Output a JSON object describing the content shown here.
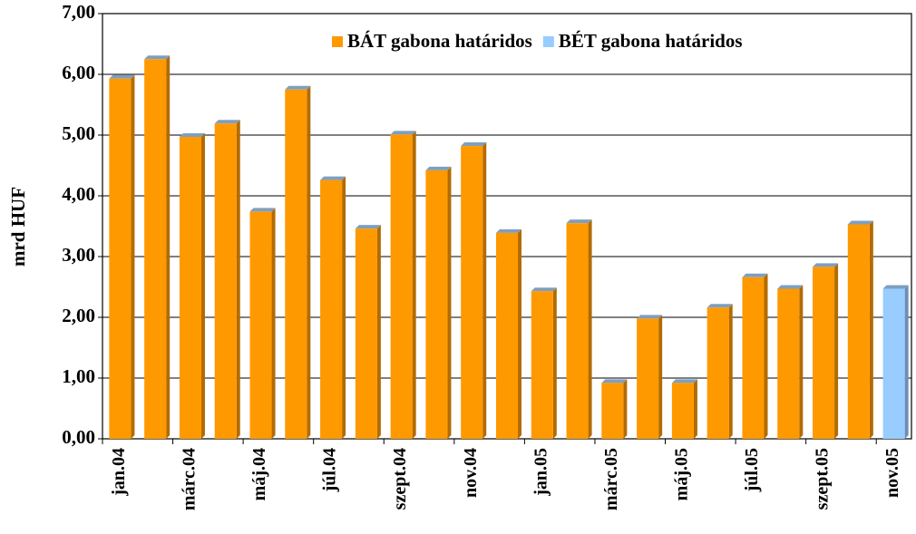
{
  "chart_data": {
    "type": "bar",
    "y_label": "mrd HUF",
    "categories": [
      "jan.04",
      null,
      "márc.04",
      null,
      "máj.04",
      null,
      "júl.04",
      null,
      "szept.04",
      null,
      "nov.04",
      null,
      "jan.05",
      null,
      "márc.05",
      null,
      "máj.05",
      null,
      "júl.05",
      null,
      "szept.05",
      null,
      "nov.05"
    ],
    "series": [
      {
        "name": "BÁT gabona határidos",
        "color": "#FF9900",
        "values": [
          5.93,
          6.25,
          4.97,
          5.19,
          3.74,
          5.75,
          4.26,
          3.46,
          5.01,
          4.42,
          4.82,
          3.39,
          2.43,
          3.55,
          0.92,
          1.98,
          0.92,
          2.16,
          2.66,
          2.47,
          2.83,
          3.53,
          null
        ]
      },
      {
        "name": "BÉT gabona határidos",
        "color": "#99CCFF",
        "values": [
          null,
          null,
          null,
          null,
          null,
          null,
          null,
          null,
          null,
          null,
          null,
          null,
          null,
          null,
          null,
          null,
          null,
          null,
          null,
          null,
          null,
          null,
          2.47
        ]
      }
    ],
    "ylim": [
      0,
      7
    ],
    "yticks": [
      {
        "value": 0,
        "label": "0,00"
      },
      {
        "value": 1,
        "label": "1,00"
      },
      {
        "value": 2,
        "label": "2,00"
      },
      {
        "value": 3,
        "label": "3,00"
      },
      {
        "value": 4,
        "label": "4,00"
      },
      {
        "value": 5,
        "label": "5,00"
      },
      {
        "value": 6,
        "label": "6,00"
      },
      {
        "value": 7,
        "label": "7,00"
      }
    ],
    "grid": true
  }
}
